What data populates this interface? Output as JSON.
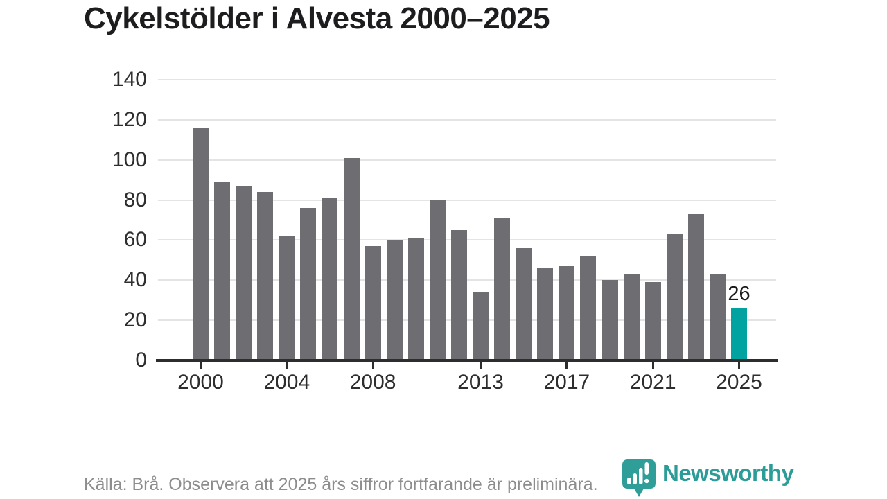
{
  "header": {
    "title": "Cykelstölder i Alvesta 2000–2025"
  },
  "chart_data": {
    "type": "bar",
    "title": "Cykelstölder i Alvesta 2000–2025",
    "categories": [
      2000,
      2001,
      2002,
      2003,
      2004,
      2005,
      2006,
      2007,
      2008,
      2009,
      2010,
      2011,
      2012,
      2013,
      2014,
      2015,
      2016,
      2017,
      2018,
      2019,
      2020,
      2021,
      2022,
      2023,
      2024,
      2025
    ],
    "values": [
      116,
      89,
      87,
      84,
      62,
      76,
      81,
      101,
      57,
      60,
      61,
      80,
      65,
      34,
      71,
      56,
      46,
      47,
      52,
      40,
      43,
      39,
      63,
      73,
      43,
      26
    ],
    "ylim": [
      0,
      140
    ],
    "y_ticks": [
      0,
      20,
      40,
      60,
      80,
      100,
      120,
      140
    ],
    "x_tick_labels": [
      "2000",
      "2004",
      "2008",
      "2013",
      "2017",
      "2021",
      "2025"
    ],
    "grid": "horizontal",
    "legend": "none",
    "bar_color": "#6d6d72",
    "highlight_color": "#00a3a0",
    "highlight_index": 25,
    "annotation": {
      "index": 25,
      "text": "26"
    }
  },
  "footer": {
    "source_text": "Källa: Brå. Observera att 2025 års siffror fortfarande är preliminära.",
    "logo": {
      "text": "Newsworthy",
      "icon": "newsworthy-pin-chart-icon",
      "color": "#2b9c98"
    }
  }
}
